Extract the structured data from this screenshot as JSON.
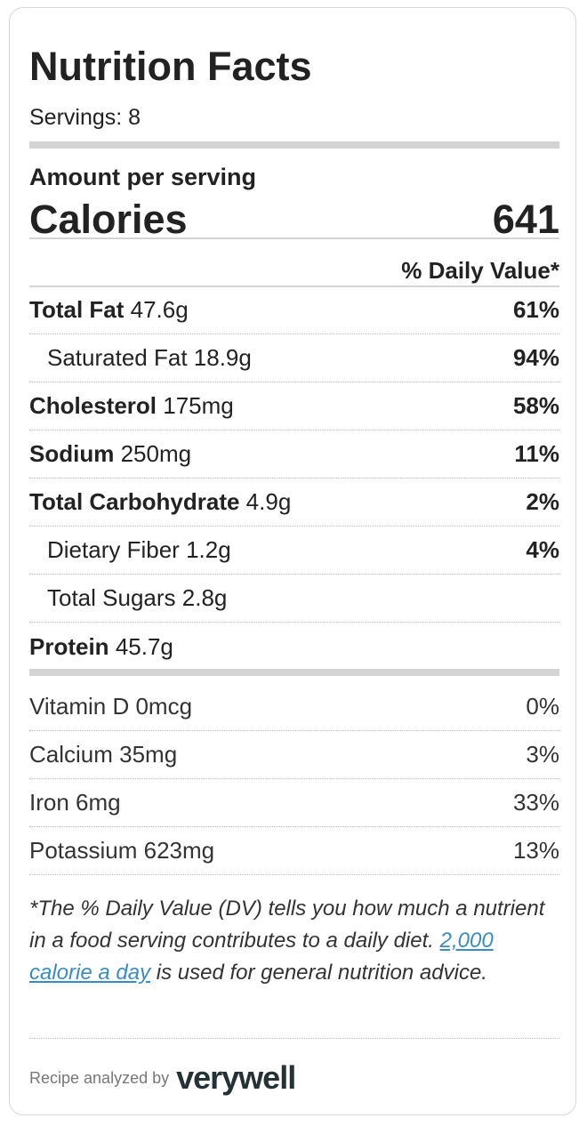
{
  "title": "Nutrition Facts",
  "servings": "Servings: 8",
  "amount_per_serving": "Amount per serving",
  "calories": {
    "label": "Calories",
    "value": "641"
  },
  "daily_value_header": "% Daily Value*",
  "nutrients": [
    {
      "name": "Total Fat",
      "amount": "47.6g",
      "pct": "61%"
    },
    {
      "name": "Saturated Fat",
      "amount": "18.9g",
      "pct": "94%"
    },
    {
      "name": "Cholesterol",
      "amount": "175mg",
      "pct": "58%"
    },
    {
      "name": "Sodium",
      "amount": "250mg",
      "pct": "11%"
    },
    {
      "name": "Total Carbohydrate",
      "amount": "4.9g",
      "pct": "2%"
    },
    {
      "name": "Dietary Fiber",
      "amount": "1.2g",
      "pct": "4%"
    },
    {
      "name": "Total Sugars",
      "amount": "2.8g"
    },
    {
      "name": "Protein",
      "amount": "45.7g"
    }
  ],
  "vitamins": [
    {
      "label": "Vitamin D 0mcg",
      "pct": "0%"
    },
    {
      "label": "Calcium 35mg",
      "pct": "3%"
    },
    {
      "label": "Iron 6mg",
      "pct": "33%"
    },
    {
      "label": "Potassium 623mg",
      "pct": "13%"
    }
  ],
  "footnote": {
    "pre": "*The % Daily Value (DV) tells you how much a nutrient in a food serving contributes to a daily diet. ",
    "link": "2,000 calorie a day",
    "post": " is used for general nutrition advice."
  },
  "footer": {
    "text": "Recipe analyzed by",
    "logo": "verywell"
  }
}
